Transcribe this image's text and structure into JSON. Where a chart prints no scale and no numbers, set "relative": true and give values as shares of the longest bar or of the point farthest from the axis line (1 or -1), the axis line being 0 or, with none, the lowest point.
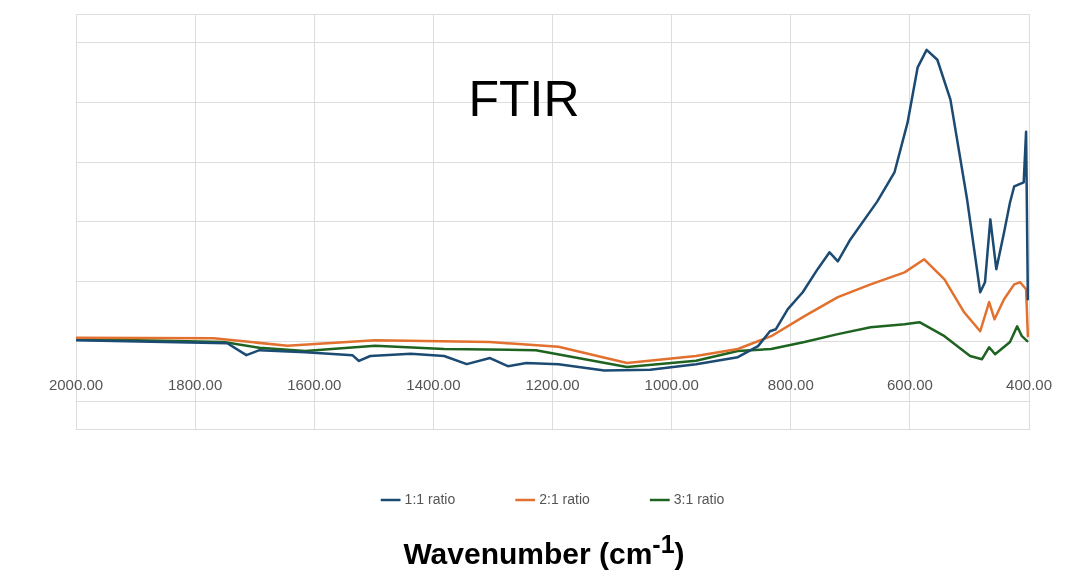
{
  "chart_data": {
    "type": "line",
    "title": "FTIR",
    "xlabel": "Wavenumber (cm$^{-1}$)",
    "relative": true,
    "grid": true,
    "legend": "bottom",
    "marker": "none",
    "line_style": "solid",
    "xlim": [
      2000,
      400
    ],
    "xticks": [
      {
        "value": 2000,
        "label": "2000.00"
      },
      {
        "value": 1800,
        "label": "1800.00"
      },
      {
        "value": 1600,
        "label": "1600.00"
      },
      {
        "value": 1400,
        "label": "1400.00"
      },
      {
        "value": 1200,
        "label": "1200.00"
      },
      {
        "value": 1000,
        "label": "1000.00"
      },
      {
        "value": 800,
        "label": "800.00"
      },
      {
        "value": 600,
        "label": "600.00"
      },
      {
        "value": 400,
        "label": "400.00"
      }
    ],
    "series": [
      {
        "name": "1:1 ratio",
        "color": "#1b4a73",
        "x": [
          2000,
          1746,
          1714,
          1692,
          1615,
          1536,
          1525,
          1506,
          1438,
          1382,
          1344,
          1305,
          1275,
          1244,
          1190,
          1113,
          1036,
          959,
          889,
          855,
          835,
          825,
          805,
          780,
          755,
          735,
          721,
          700,
          655,
          626,
          604,
          587,
          572,
          554,
          532,
          504,
          482,
          474,
          465,
          455,
          442,
          432,
          425,
          409,
          405,
          402
        ],
        "values": [
          0.003,
          -0.007,
          -0.048,
          -0.031,
          -0.038,
          -0.048,
          -0.068,
          -0.051,
          -0.043,
          -0.051,
          -0.079,
          -0.058,
          -0.086,
          -0.075,
          -0.079,
          -0.101,
          -0.098,
          -0.079,
          -0.055,
          -0.017,
          0.034,
          0.041,
          0.11,
          0.168,
          0.247,
          0.305,
          0.274,
          0.349,
          0.479,
          0.579,
          0.75,
          0.94,
          1.0,
          0.966,
          0.829,
          0.486,
          0.168,
          0.202,
          0.418,
          0.247,
          0.373,
          0.476,
          0.531,
          0.545,
          0.719,
          0.144
        ]
      },
      {
        "name": "2:1 ratio",
        "color": "#e2702e",
        "x": [
          2000,
          1769,
          1645,
          1498,
          1305,
          1190,
          1075,
          959,
          889,
          833,
          777,
          721,
          666,
          609,
          576,
          542,
          509,
          482,
          467,
          458,
          442,
          425,
          415,
          405,
          402
        ],
        "values": [
          0.012,
          0.01,
          -0.016,
          0.003,
          -0.003,
          -0.019,
          -0.075,
          -0.051,
          -0.027,
          0.017,
          0.086,
          0.151,
          0.195,
          0.236,
          0.281,
          0.212,
          0.099,
          0.034,
          0.134,
          0.075,
          0.144,
          0.195,
          0.202,
          0.178,
          0.017
        ]
      },
      {
        "name": "3:1 ratio",
        "color": "#1e6420",
        "x": [
          2000,
          1752,
          1692,
          1615,
          1498,
          1382,
          1228,
          1075,
          959,
          889,
          833,
          777,
          721,
          666,
          609,
          584,
          542,
          499,
          479,
          467,
          457,
          432,
          420,
          412,
          403
        ],
        "values": [
          0.007,
          -0.003,
          -0.023,
          -0.034,
          -0.016,
          -0.027,
          -0.031,
          -0.089,
          -0.067,
          -0.034,
          -0.027,
          -0.003,
          0.024,
          0.048,
          0.058,
          0.065,
          0.017,
          -0.051,
          -0.062,
          -0.021,
          -0.045,
          -0.003,
          0.051,
          0.017,
          0
        ]
      }
    ]
  }
}
